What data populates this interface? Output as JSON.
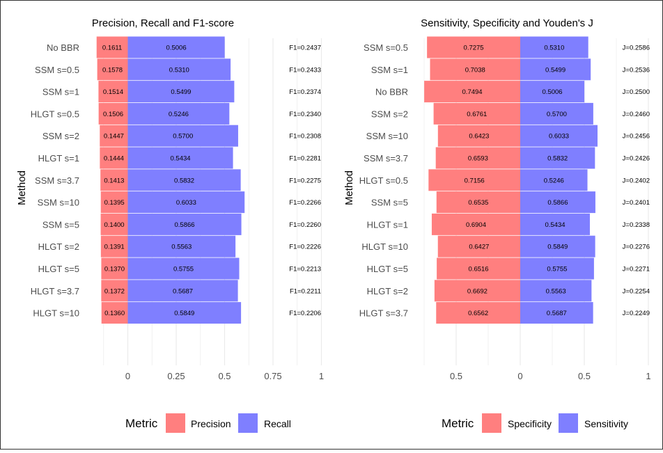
{
  "colors": {
    "precision": "#ff7f7f",
    "recall": "#7f7fff",
    "grid": "#ebebeb",
    "text": "#4d4d4d"
  },
  "chart_data": [
    {
      "type": "bar",
      "orientation": "horizontal",
      "title": "Precision, Recall and F1-score",
      "ylabel": "Method",
      "xlabel": "",
      "xlim": [
        -0.2,
        1.0
      ],
      "xticks": [
        0,
        0.25,
        0.5,
        0.75,
        1
      ],
      "xtick_labels": [
        "0",
        "0.25",
        "0.5",
        "0.75",
        "1"
      ],
      "grid": true,
      "legend": {
        "title": "Metric",
        "position": "bottom",
        "entries": [
          "Precision",
          "Recall"
        ]
      },
      "categories": [
        "No BBR",
        "SSM s=0.5",
        "SSM s=1",
        "HLGT s=0.5",
        "SSM s=2",
        "HLGT s=1",
        "SSM s=3.7",
        "SSM s=10",
        "SSM s=5",
        "HLGT s=2",
        "HLGT s=5",
        "HLGT s=3.7",
        "HLGT s=10"
      ],
      "series": [
        {
          "name": "Precision",
          "direction": "negative",
          "values": [
            0.1611,
            0.1578,
            0.1514,
            0.1506,
            0.1447,
            0.1444,
            0.1413,
            0.1395,
            0.14,
            0.1391,
            0.137,
            0.1372,
            0.136
          ],
          "labels": [
            "0.1611",
            "0.1578",
            "0.1514",
            "0.1506",
            "0.1447",
            "0.1444",
            "0.1413",
            "0.1395",
            "0.1400",
            "0.1391",
            "0.1370",
            "0.1372",
            "0.1360"
          ]
        },
        {
          "name": "Recall",
          "direction": "positive",
          "values": [
            0.5006,
            0.531,
            0.5499,
            0.5246,
            0.57,
            0.5434,
            0.5832,
            0.6033,
            0.5866,
            0.5563,
            0.5755,
            0.5687,
            0.5849
          ],
          "labels": [
            "0.5006",
            "0.5310",
            "0.5499",
            "0.5246",
            "0.5700",
            "0.5434",
            "0.5832",
            "0.6033",
            "0.5866",
            "0.5563",
            "0.5755",
            "0.5687",
            "0.5849"
          ]
        }
      ],
      "annotations": [
        "F1=0.2437",
        "F1=0.2433",
        "F1=0.2374",
        "F1=0.2340",
        "F1=0.2308",
        "F1=0.2281",
        "F1=0.2275",
        "F1=0.2266",
        "F1=0.2260",
        "F1=0.2226",
        "F1=0.2213",
        "F1=0.2211",
        "F1=0.2206"
      ]
    },
    {
      "type": "bar",
      "orientation": "horizontal",
      "title": "Sensitivity, Specificity and Youden's J",
      "ylabel": "Method",
      "xlabel": "",
      "xlim": [
        -0.8,
        1.0
      ],
      "xticks": [
        -0.5,
        0,
        0.5,
        1
      ],
      "xtick_labels": [
        "0.5",
        "0",
        "0.5",
        "1"
      ],
      "grid": true,
      "legend": {
        "title": "Metric",
        "position": "bottom",
        "entries": [
          "Specificity",
          "Sensitivity"
        ]
      },
      "categories": [
        "SSM s=0.5",
        "SSM s=1",
        "No BBR",
        "SSM s=2",
        "SSM s=10",
        "SSM s=3.7",
        "HLGT s=0.5",
        "SSM s=5",
        "HLGT s=1",
        "HLGT s=10",
        "HLGT s=5",
        "HLGT s=2",
        "HLGT s=3.7"
      ],
      "series": [
        {
          "name": "Specificity",
          "direction": "negative",
          "values": [
            0.7275,
            0.7038,
            0.7494,
            0.6761,
            0.6423,
            0.6593,
            0.7156,
            0.6535,
            0.6904,
            0.6427,
            0.6516,
            0.6692,
            0.6562
          ],
          "labels": [
            "0.7275",
            "0.7038",
            "0.7494",
            "0.6761",
            "0.6423",
            "0.6593",
            "0.7156",
            "0.6535",
            "0.6904",
            "0.6427",
            "0.6516",
            "0.6692",
            "0.6562"
          ]
        },
        {
          "name": "Sensitivity",
          "direction": "positive",
          "values": [
            0.531,
            0.5499,
            0.5006,
            0.57,
            0.6033,
            0.5832,
            0.5246,
            0.5866,
            0.5434,
            0.5849,
            0.5755,
            0.5563,
            0.5687
          ],
          "labels": [
            "0.5310",
            "0.5499",
            "0.5006",
            "0.5700",
            "0.6033",
            "0.5832",
            "0.5246",
            "0.5866",
            "0.5434",
            "0.5849",
            "0.5755",
            "0.5563",
            "0.5687"
          ]
        }
      ],
      "annotations": [
        "J=0.2586",
        "J=0.2536",
        "J=0.2500",
        "J=0.2460",
        "J=0.2456",
        "J=0.2426",
        "J=0.2402",
        "J=0.2401",
        "J=0.2338",
        "J=0.2276",
        "J=0.2271",
        "J=0.2254",
        "J=0.2249"
      ]
    }
  ]
}
